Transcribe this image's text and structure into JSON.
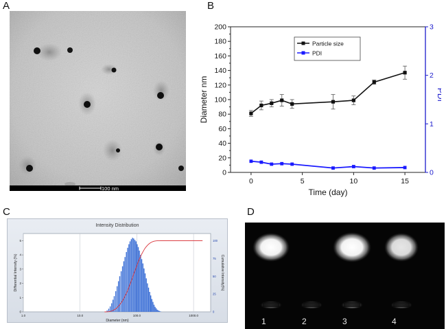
{
  "panels": {
    "a_label": "A",
    "b_label": "B",
    "c_label": "C",
    "d_label": "D"
  },
  "tem": {
    "scale_label": "100 nm"
  },
  "colors": {
    "size_series": "#111111",
    "pdi_series": "#1a1aff",
    "pdi_axis": "#1a1acc",
    "hist_bar": "#3b6fd6",
    "cumulative": "#d9343a",
    "gel_bg": "#050505"
  },
  "gel": {
    "lanes": [
      "1",
      "2",
      "3",
      "4"
    ]
  },
  "chart_data": [
    {
      "id": "B",
      "type": "line",
      "title": "",
      "xlabel": "Time (day)",
      "ylabel": "Diameter nm",
      "y2label": "PDI",
      "xlim": [
        -2,
        17
      ],
      "ylim": [
        0,
        200
      ],
      "y2lim": [
        0,
        3
      ],
      "xticks": [
        0,
        5,
        10,
        15
      ],
      "yticks": [
        0,
        20,
        40,
        60,
        80,
        100,
        120,
        140,
        160,
        180,
        200
      ],
      "y2ticks": [
        0,
        1,
        2,
        3
      ],
      "legend_position": "top-center",
      "series": [
        {
          "name": "Particle size",
          "axis": "left",
          "x": [
            0,
            1,
            2,
            3,
            4,
            8,
            10,
            12,
            15
          ],
          "values": [
            81,
            92,
            95,
            99,
            94,
            97,
            99,
            124,
            137
          ],
          "errors": [
            4,
            6,
            5,
            8,
            6,
            10,
            6,
            3,
            9
          ]
        },
        {
          "name": "PDI",
          "axis": "right",
          "x": [
            0,
            1,
            2,
            3,
            4,
            8,
            10,
            12,
            15
          ],
          "values": [
            0.23,
            0.21,
            0.17,
            0.18,
            0.17,
            0.09,
            0.12,
            0.09,
            0.1
          ]
        }
      ]
    },
    {
      "id": "C",
      "type": "bar",
      "title": "Intensity Distribution",
      "xlabel": "Diameter (nm)",
      "ylabel": "Differential Intensity (%)",
      "y2label": "Cumulative Intensity(%)",
      "xscale": "log",
      "xlim": [
        1,
        2000
      ],
      "ylim": [
        0,
        5.5
      ],
      "y2lim": [
        0,
        100
      ],
      "xtick_labels": [
        "1.0",
        "10.0",
        "100.0",
        "1000.0"
      ],
      "xtick_values": [
        1,
        10,
        100,
        1000
      ],
      "ytick_labels": [
        "0",
        "1",
        "2",
        "3",
        "4",
        "5"
      ],
      "y2tick_labels": [
        "0",
        "25",
        "50",
        "75",
        "100"
      ],
      "bar_diameters": [
        30,
        32,
        34,
        36,
        38,
        40,
        42.5,
        45,
        47.5,
        50,
        53,
        56,
        59,
        62,
        65.5,
        69,
        72.5,
        76,
        80,
        84,
        88,
        92.5,
        97,
        101.5,
        106,
        111,
        116.5,
        122,
        128,
        134,
        140,
        147,
        154,
        161,
        168.5,
        176,
        184,
        192.5,
        201,
        210,
        219,
        229,
        239,
        250,
        261
      ],
      "bar_values": [
        0.1,
        0.22,
        0.38,
        0.6,
        0.85,
        1.1,
        1.45,
        1.8,
        2.15,
        2.5,
        2.85,
        3.2,
        3.55,
        3.85,
        4.2,
        4.5,
        4.75,
        4.95,
        5.1,
        5.2,
        5.15,
        5.05,
        4.95,
        4.75,
        4.55,
        4.3,
        4.0,
        3.7,
        3.4,
        3.05,
        2.7,
        2.35,
        2.0,
        1.7,
        1.4,
        1.15,
        0.9,
        0.7,
        0.5,
        0.35,
        0.25,
        0.15,
        0.1,
        0.06,
        0.03
      ]
    }
  ]
}
